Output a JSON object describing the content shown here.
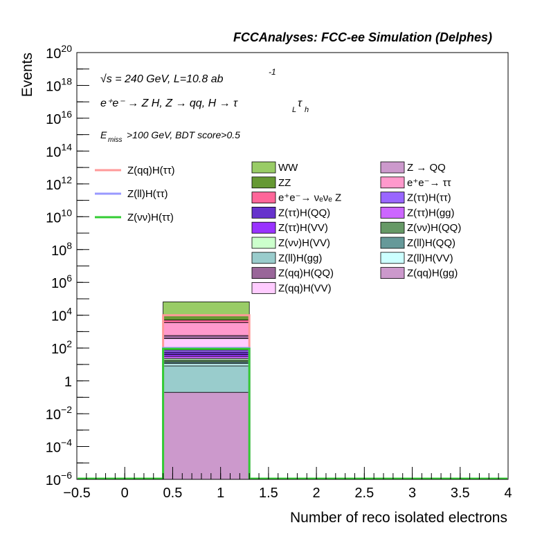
{
  "chart_data": {
    "type": "bar",
    "title": "FCCAnalyses: FCC-ee Simulation (Delphes)",
    "xlabel": "Number of reco isolated electrons",
    "ylabel": "Events",
    "xlim": [
      -0.5,
      4
    ],
    "ylim": [
      1e-06,
      1e+20
    ],
    "log_y": true,
    "grid": false,
    "annotations": {
      "sqrt_s": "√s = 240 GeV, L=10.8 ab",
      "lumi_exp": "-1",
      "process": "e⁺e⁻ → Z H, Z → qq, H → τ",
      "process_sub_L": "L",
      "process_tau2": "τ",
      "process_sub_h": "h",
      "cuts_E": "E",
      "cuts_sub": "miss",
      "cuts_rest": ">100 GeV, BDT score>0.5"
    },
    "x_ticks": [
      "−0.5",
      "0",
      "0.5",
      "1",
      "1.5",
      "2",
      "2.5",
      "3",
      "3.5",
      "4"
    ],
    "y_ticks": [
      {
        "base": "10",
        "exp": "−6"
      },
      {
        "base": "10",
        "exp": "−4"
      },
      {
        "base": "10",
        "exp": "−2"
      },
      {
        "base": "1",
        "exp": ""
      },
      {
        "base": "10",
        "exp": "2"
      },
      {
        "base": "10",
        "exp": "4"
      },
      {
        "base": "10",
        "exp": "6"
      },
      {
        "base": "10",
        "exp": "8"
      },
      {
        "base": "10",
        "exp": "10"
      },
      {
        "base": "10",
        "exp": "12"
      },
      {
        "base": "10",
        "exp": "14"
      },
      {
        "base": "10",
        "exp": "16"
      },
      {
        "base": "10",
        "exp": "18"
      },
      {
        "base": "10",
        "exp": "20"
      }
    ],
    "bin": [
      0.4,
      1.3
    ],
    "stack": [
      {
        "name": "Z(qq)H(gg)",
        "color": "#cc99cc",
        "value": 0.2
      },
      {
        "name": "Z(ll)H(gg)",
        "color": "#99cccc",
        "value": 8
      },
      {
        "name": "Z(ll)H(VV)",
        "color": "#ccffff",
        "value": 3
      },
      {
        "name": "Z(ll)H(QQ)",
        "color": "#669999",
        "value": 3
      },
      {
        "name": "Z(νν)H(QQ)",
        "color": "#669966",
        "value": 4
      },
      {
        "name": "Z(νν)H(VV)",
        "color": "#ccffcc",
        "value": 5
      },
      {
        "name": "Z(ττ)H(gg)",
        "color": "#cc66ff",
        "value": 8
      },
      {
        "name": "Z(ττ)H(VV)",
        "color": "#9933ff",
        "value": 10
      },
      {
        "name": "Z(ττ)H(QQ)",
        "color": "#6633cc",
        "value": 15
      },
      {
        "name": "Z(ττ)H(ττ)",
        "color": "#9966ff",
        "value": 20
      },
      {
        "name": "Z(qq)H(VV)",
        "color": "#ffccff",
        "value": 300
      },
      {
        "name": "Z(qq)H(QQ)",
        "color": "#996699",
        "value": 200
      },
      {
        "name": "e⁺e⁻→ ττ",
        "color": "#ff99cc",
        "value": 3000
      },
      {
        "name": "e⁺e⁻→ νₑνₑ Z",
        "color": "#ff6699",
        "value": 1500
      },
      {
        "name": "ZZ",
        "color": "#669933",
        "value": 5000
      },
      {
        "name": "WW",
        "color": "#99cc66",
        "value": 55000
      }
    ],
    "lines": [
      {
        "name": "Z(qq)H(ττ)",
        "color": "#ff9999",
        "value": 10000
      },
      {
        "name": "Z(ll)H(ττ)",
        "color": "#9999ff",
        "value": 100
      },
      {
        "name": "Z(νν)H(ττ)",
        "color": "#33cc33",
        "value": 90
      }
    ],
    "legend_lines": [
      "Z(qq)H(ττ)",
      "Z(ll)H(ττ)",
      "Z(νν)H(ττ)"
    ],
    "legend_col1": [
      {
        "label": "WW",
        "color": "#99cc66"
      },
      {
        "label": "ZZ",
        "color": "#669933"
      },
      {
        "label": "e⁺e⁻→ νₑνₑ Z",
        "color": "#ff6699"
      },
      {
        "label": "Z(ττ)H(QQ)",
        "color": "#6633cc"
      },
      {
        "label": "Z(ττ)H(VV)",
        "color": "#9933ff"
      },
      {
        "label": "Z(νν)H(VV)",
        "color": "#ccffcc"
      },
      {
        "label": "Z(ll)H(gg)",
        "color": "#99cccc"
      },
      {
        "label": "Z(qq)H(QQ)",
        "color": "#996699"
      },
      {
        "label": "Z(qq)H(VV)",
        "color": "#ffccff"
      }
    ],
    "legend_col2": [
      {
        "label": "Z → QQ",
        "color": "#cc99cc"
      },
      {
        "label": "e⁺e⁻→ ττ",
        "color": "#ff99cc"
      },
      {
        "label": "Z(ττ)H(ττ)",
        "color": "#9966ff"
      },
      {
        "label": "Z(ττ)H(gg)",
        "color": "#cc66ff"
      },
      {
        "label": "Z(νν)H(QQ)",
        "color": "#669966"
      },
      {
        "label": "Z(ll)H(QQ)",
        "color": "#669999"
      },
      {
        "label": "Z(ll)H(VV)",
        "color": "#ccffff"
      },
      {
        "label": "Z(qq)H(gg)",
        "color": "#cc99cc"
      }
    ]
  }
}
